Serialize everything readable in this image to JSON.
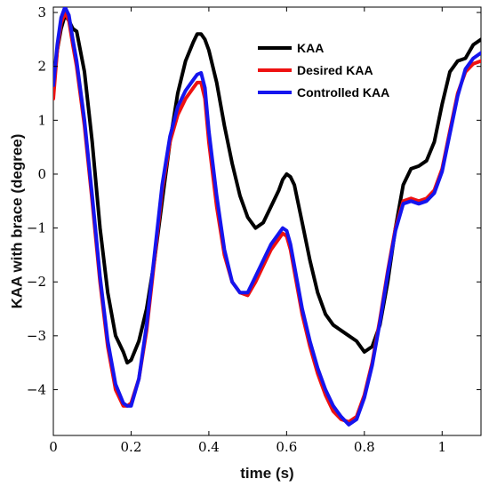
{
  "chart_data": {
    "type": "line",
    "title": "",
    "xlabel": "time (s)",
    "ylabel": "KAA with brace (degree)",
    "xlim": [
      0,
      1.1
    ],
    "ylim": [
      -4.85,
      3.1
    ],
    "xticks": [
      0,
      0.2,
      0.4,
      0.6,
      0.8,
      1
    ],
    "xtick_labels": [
      "0",
      "0.2",
      "0.4",
      "0.6",
      "0.8",
      "1"
    ],
    "yticks": [
      3,
      2,
      1,
      0,
      -1,
      -2,
      -3,
      -4
    ],
    "ytick_labels": [
      "3",
      "2",
      "1",
      "0",
      "−1",
      "−2",
      "−3",
      "−4"
    ],
    "grid": false,
    "legend_position": "top-right",
    "series": [
      {
        "name": "KAA",
        "color": "#000000",
        "x": [
          0.0,
          0.01,
          0.02,
          0.03,
          0.04,
          0.05,
          0.06,
          0.08,
          0.1,
          0.12,
          0.14,
          0.16,
          0.18,
          0.19,
          0.2,
          0.22,
          0.24,
          0.26,
          0.28,
          0.3,
          0.32,
          0.34,
          0.36,
          0.37,
          0.38,
          0.39,
          0.4,
          0.42,
          0.44,
          0.46,
          0.48,
          0.5,
          0.52,
          0.54,
          0.56,
          0.58,
          0.59,
          0.6,
          0.61,
          0.62,
          0.64,
          0.66,
          0.68,
          0.7,
          0.72,
          0.74,
          0.76,
          0.78,
          0.8,
          0.82,
          0.84,
          0.86,
          0.88,
          0.9,
          0.92,
          0.94,
          0.96,
          0.98,
          1.0,
          1.02,
          1.04,
          1.06,
          1.08,
          1.1
        ],
        "y": [
          1.6,
          2.3,
          2.7,
          2.95,
          2.85,
          2.7,
          2.65,
          1.9,
          0.6,
          -1.0,
          -2.2,
          -3.0,
          -3.3,
          -3.5,
          -3.45,
          -3.1,
          -2.5,
          -1.6,
          -0.5,
          0.6,
          1.5,
          2.1,
          2.45,
          2.6,
          2.6,
          2.5,
          2.3,
          1.7,
          0.9,
          0.2,
          -0.4,
          -0.8,
          -1.0,
          -0.9,
          -0.6,
          -0.3,
          -0.1,
          0.0,
          -0.05,
          -0.2,
          -0.9,
          -1.6,
          -2.2,
          -2.6,
          -2.8,
          -2.9,
          -3.0,
          -3.1,
          -3.3,
          -3.2,
          -2.8,
          -2.0,
          -1.0,
          -0.2,
          0.1,
          0.15,
          0.25,
          0.6,
          1.3,
          1.9,
          2.1,
          2.15,
          2.4,
          2.5
        ]
      },
      {
        "name": "Desired KAA",
        "color": "#ee1111",
        "x": [
          0.0,
          0.01,
          0.02,
          0.03,
          0.04,
          0.05,
          0.06,
          0.08,
          0.1,
          0.12,
          0.14,
          0.16,
          0.18,
          0.19,
          0.2,
          0.22,
          0.24,
          0.26,
          0.28,
          0.3,
          0.32,
          0.34,
          0.36,
          0.37,
          0.38,
          0.39,
          0.4,
          0.42,
          0.44,
          0.46,
          0.48,
          0.5,
          0.52,
          0.54,
          0.56,
          0.58,
          0.59,
          0.6,
          0.61,
          0.62,
          0.64,
          0.66,
          0.68,
          0.7,
          0.72,
          0.74,
          0.76,
          0.78,
          0.8,
          0.82,
          0.84,
          0.86,
          0.88,
          0.9,
          0.92,
          0.94,
          0.96,
          0.98,
          1.0,
          1.02,
          1.04,
          1.06,
          1.08,
          1.1
        ],
        "y": [
          1.4,
          2.3,
          2.8,
          3.0,
          2.85,
          2.4,
          2.0,
          0.9,
          -0.5,
          -2.0,
          -3.2,
          -4.0,
          -4.3,
          -4.3,
          -4.25,
          -3.8,
          -2.9,
          -1.6,
          -0.3,
          0.6,
          1.1,
          1.4,
          1.6,
          1.7,
          1.7,
          1.4,
          0.6,
          -0.6,
          -1.5,
          -2.0,
          -2.2,
          -2.25,
          -2.0,
          -1.7,
          -1.4,
          -1.2,
          -1.1,
          -1.15,
          -1.4,
          -1.8,
          -2.6,
          -3.2,
          -3.7,
          -4.1,
          -4.4,
          -4.55,
          -4.6,
          -4.5,
          -4.1,
          -3.5,
          -2.7,
          -1.8,
          -1.0,
          -0.5,
          -0.45,
          -0.5,
          -0.45,
          -0.3,
          0.1,
          0.8,
          1.5,
          1.9,
          2.05,
          2.1
        ]
      },
      {
        "name": "Controlled KAA",
        "color": "#1515ee",
        "x": [
          0.0,
          0.01,
          0.02,
          0.03,
          0.04,
          0.05,
          0.06,
          0.08,
          0.1,
          0.12,
          0.14,
          0.16,
          0.18,
          0.19,
          0.2,
          0.22,
          0.24,
          0.26,
          0.28,
          0.3,
          0.32,
          0.34,
          0.36,
          0.37,
          0.38,
          0.39,
          0.4,
          0.42,
          0.44,
          0.46,
          0.48,
          0.5,
          0.52,
          0.54,
          0.56,
          0.58,
          0.59,
          0.6,
          0.61,
          0.62,
          0.64,
          0.66,
          0.68,
          0.7,
          0.72,
          0.74,
          0.76,
          0.78,
          0.8,
          0.82,
          0.84,
          0.86,
          0.88,
          0.9,
          0.92,
          0.94,
          0.96,
          0.98,
          1.0,
          1.02,
          1.04,
          1.06,
          1.08,
          1.1
        ],
        "y": [
          1.65,
          2.4,
          2.9,
          3.1,
          2.95,
          2.5,
          2.1,
          1.0,
          -0.4,
          -1.9,
          -3.1,
          -3.9,
          -4.25,
          -4.3,
          -4.3,
          -3.8,
          -2.8,
          -1.5,
          -0.2,
          0.7,
          1.25,
          1.55,
          1.75,
          1.85,
          1.88,
          1.6,
          0.8,
          -0.4,
          -1.4,
          -2.0,
          -2.2,
          -2.2,
          -1.9,
          -1.6,
          -1.3,
          -1.1,
          -1.0,
          -1.05,
          -1.3,
          -1.7,
          -2.5,
          -3.1,
          -3.6,
          -4.0,
          -4.3,
          -4.5,
          -4.65,
          -4.55,
          -4.15,
          -3.55,
          -2.75,
          -1.85,
          -1.05,
          -0.55,
          -0.5,
          -0.55,
          -0.5,
          -0.35,
          0.05,
          0.75,
          1.45,
          1.95,
          2.15,
          2.25
        ]
      }
    ]
  }
}
